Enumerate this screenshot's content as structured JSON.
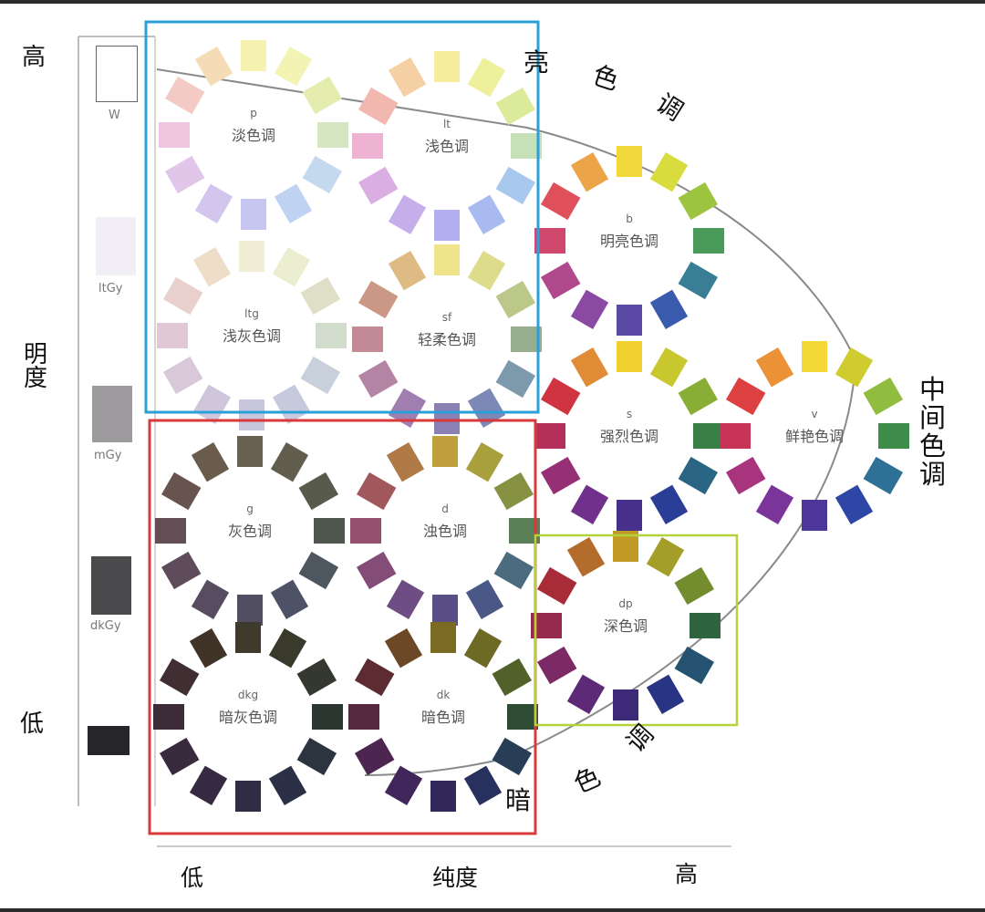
{
  "axes": {
    "lightness_high": "高",
    "lightness_title": "明度",
    "lightness_low": "低",
    "saturation_low": "低",
    "saturation_title": "纯度",
    "saturation_high": "高"
  },
  "groups": {
    "bright_tone": "亮色调",
    "middle_tone": "中间色调",
    "dark_tone": "暗色调"
  },
  "gray_scale": [
    {
      "label": "W",
      "color": "#ffffff"
    },
    {
      "label": "ltGy",
      "color": "#f1eff5"
    },
    {
      "label": "mGy",
      "color": "#9c9a9c"
    },
    {
      "label": "dkGy",
      "color": "#4a494c"
    },
    {
      "label": "",
      "color": "#26262a"
    }
  ],
  "frames": {
    "light_box": "#2aa0d8",
    "dark_box": "#d83a3a",
    "deep_box": "#b4d23c"
  },
  "tones": [
    {
      "id": "p",
      "abbr": "p",
      "name": "淡色调",
      "colors": [
        "#f6f2b0",
        "#f3f4b4",
        "#e4ecb0",
        "#d6e6c2",
        "#c4d8ee",
        "#c0d2f2",
        "#c6c6f0",
        "#d2c6ee",
        "#e2c6ea",
        "#f0c4de",
        "#f4cbc4",
        "#f6dcb6"
      ]
    },
    {
      "id": "lt",
      "abbr": "lt",
      "name": "浅色调",
      "colors": [
        "#f6ee9c",
        "#eef09c",
        "#dcea9c",
        "#c6e0b8",
        "#a8c8ee",
        "#a8baf0",
        "#b2aef0",
        "#c6aeea",
        "#daaee2",
        "#eeb2d2",
        "#f2b8b0",
        "#f4d0a4"
      ]
    },
    {
      "id": "ltg",
      "abbr": "ltg",
      "name": "浅灰色调",
      "colors": [
        "#f2eed6",
        "#eceed2",
        "#dedfc6",
        "#d2dccc",
        "#c8d0dc",
        "#c6cadc",
        "#c8c6dc",
        "#cfc6dc",
        "#d8c8da",
        "#e0c8d4",
        "#e8d0cc",
        "#eedec8"
      ]
    },
    {
      "id": "sf",
      "abbr": "sf",
      "name": "轻柔色调",
      "colors": [
        "#f0e48a",
        "#dcdc8a",
        "#bcc88a",
        "#98ae8e",
        "#7c9aac",
        "#7c88b6",
        "#8a80b4",
        "#a07eb0",
        "#b484a4",
        "#c28a94",
        "#cc9886",
        "#deba84"
      ]
    },
    {
      "id": "b",
      "abbr": "b",
      "name": "明亮色调",
      "colors": [
        "#f2d83a",
        "#d8dc3c",
        "#9cc43e",
        "#4a9a5a",
        "#3a7e96",
        "#3a5aae",
        "#5a4aa6",
        "#8a4aa4",
        "#b0488c",
        "#d0486e",
        "#e0505a",
        "#eca448"
      ]
    },
    {
      "id": "s",
      "abbr": "s",
      "name": "强烈色调",
      "colors": [
        "#f0d02e",
        "#c8c82e",
        "#88ae36",
        "#3a8046",
        "#2a6684",
        "#2a3e98",
        "#46308c",
        "#70308c",
        "#963076",
        "#b4305a",
        "#d03440",
        "#e08c36"
      ]
    },
    {
      "id": "v",
      "abbr": "v",
      "name": "鲜艳色调",
      "colors": [
        "#f4d838",
        "#d0cc30",
        "#90bc40",
        "#3e8c4a",
        "#2e7096",
        "#2e46a6",
        "#4c369a",
        "#7a349a",
        "#a8347e",
        "#c83458",
        "#dc4040",
        "#ec9236"
      ]
    },
    {
      "id": "g",
      "abbr": "g",
      "name": "灰色调",
      "colors": [
        "#686050",
        "#625e4e",
        "#585a4c",
        "#4e564e",
        "#4e5660",
        "#4e5266",
        "#524e62",
        "#584c60",
        "#5e4c5a",
        "#644e56",
        "#68544e",
        "#6a5c4c"
      ]
    },
    {
      "id": "d",
      "abbr": "d",
      "name": "浊色调",
      "colors": [
        "#c0a03c",
        "#a8a03c",
        "#869242",
        "#5a7e56",
        "#4a6c7e",
        "#4a5888",
        "#5a4e86",
        "#6e4c84",
        "#844c78",
        "#94506c",
        "#a0585c",
        "#b07a46"
      ]
    },
    {
      "id": "dp",
      "abbr": "dp",
      "name": "深色调",
      "colors": [
        "#c09a24",
        "#a49e28",
        "#728c2e",
        "#2e6440",
        "#245270",
        "#283484",
        "#3c2a78",
        "#5e2a78",
        "#7c2a66",
        "#962a4e",
        "#a82c38",
        "#b46c2c"
      ]
    },
    {
      "id": "dkg",
      "abbr": "dkg",
      "name": "暗灰色调",
      "colors": [
        "#3e3a2c",
        "#3a3a2c",
        "#34382e",
        "#2c3630",
        "#2c3440",
        "#2c3046",
        "#302c44",
        "#362a42",
        "#3a2a3e",
        "#3c2c38",
        "#402e32",
        "#403428"
      ]
    },
    {
      "id": "dk",
      "abbr": "dk",
      "name": "暗色调",
      "colors": [
        "#7a6a22",
        "#6c6a24",
        "#52602a",
        "#2e4c34",
        "#283e56",
        "#28305e",
        "#32285a",
        "#40265a",
        "#4c2650",
        "#56283e",
        "#5c2c32",
        "#6c4826"
      ]
    }
  ]
}
